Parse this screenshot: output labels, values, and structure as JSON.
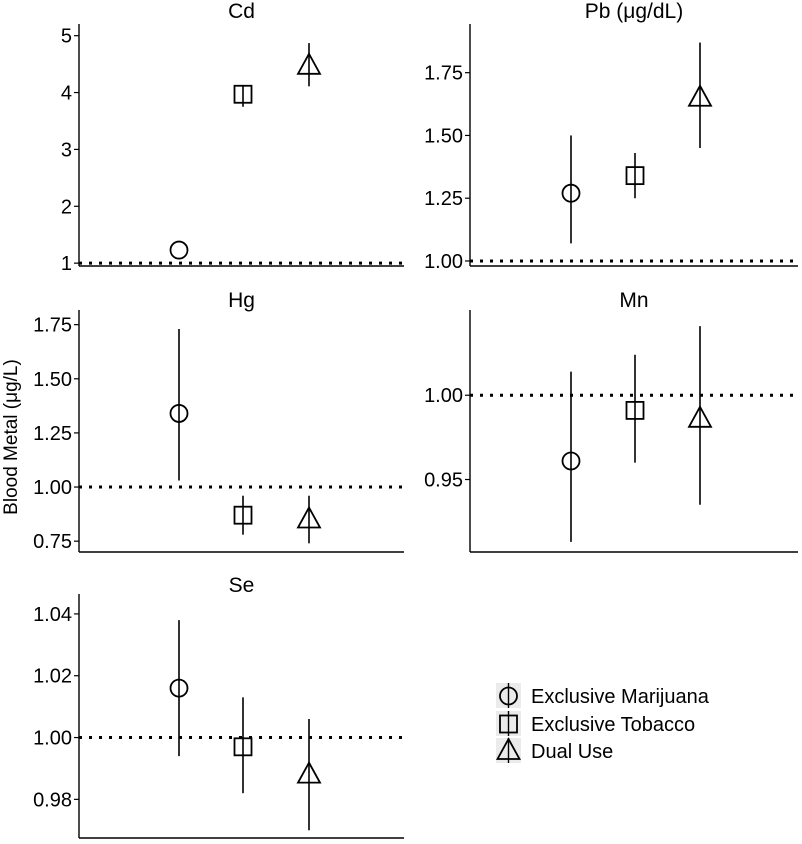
{
  "ylabel": "Blood Metal (μg/L)",
  "legend": {
    "placement": "bottom-right",
    "entries": [
      {
        "label": "Exclusive Marijuana",
        "marker": "circle"
      },
      {
        "label": "Exclusive Tobacco",
        "marker": "square"
      },
      {
        "label": "Dual Use",
        "marker": "triangle"
      }
    ]
  },
  "chart_data": [
    {
      "type": "scatter",
      "title": "Cd",
      "ylim": [
        0.95,
        5.1
      ],
      "yticks": [
        1,
        2,
        3,
        4,
        5
      ],
      "ytick_labels": [
        "1",
        "2",
        "3",
        "4",
        "5"
      ],
      "reference_line": 1,
      "series": [
        {
          "name": "Exclusive Marijuana",
          "marker": "circle",
          "value": 1.23,
          "lower": 1.23,
          "upper": 1.23
        },
        {
          "name": "Exclusive Tobacco",
          "marker": "square",
          "value": 3.97,
          "lower": 3.75,
          "upper": 4.12
        },
        {
          "name": "Dual Use",
          "marker": "triangle",
          "value": 4.47,
          "lower": 4.11,
          "upper": 4.87
        }
      ]
    },
    {
      "type": "scatter",
      "title": "Pb (μg/dL)",
      "ylim": [
        0.98,
        1.92
      ],
      "yticks": [
        1.0,
        1.25,
        1.5,
        1.75
      ],
      "ytick_labels": [
        "1.00",
        "1.25",
        "1.50",
        "1.75"
      ],
      "reference_line": 1,
      "series": [
        {
          "name": "Exclusive Marijuana",
          "marker": "circle",
          "value": 1.27,
          "lower": 1.07,
          "upper": 1.5
        },
        {
          "name": "Exclusive Tobacco",
          "marker": "square",
          "value": 1.34,
          "lower": 1.25,
          "upper": 1.43
        },
        {
          "name": "Dual Use",
          "marker": "triangle",
          "value": 1.65,
          "lower": 1.45,
          "upper": 1.87
        }
      ]
    },
    {
      "type": "scatter",
      "title": "Hg",
      "ylim": [
        0.7,
        1.79
      ],
      "yticks": [
        0.75,
        1.0,
        1.25,
        1.5,
        1.75
      ],
      "ytick_labels": [
        "0.75",
        "1.00",
        "1.25",
        "1.50",
        "1.75"
      ],
      "reference_line": 1,
      "series": [
        {
          "name": "Exclusive Marijuana",
          "marker": "circle",
          "value": 1.34,
          "lower": 1.03,
          "upper": 1.73
        },
        {
          "name": "Exclusive Tobacco",
          "marker": "square",
          "value": 0.87,
          "lower": 0.78,
          "upper": 0.96
        },
        {
          "name": "Dual Use",
          "marker": "triangle",
          "value": 0.85,
          "lower": 0.74,
          "upper": 0.96
        }
      ]
    },
    {
      "type": "scatter",
      "title": "Mn",
      "ylim": [
        0.907,
        1.047
      ],
      "yticks": [
        0.95,
        1.0
      ],
      "ytick_labels": [
        "0.95",
        "1.00"
      ],
      "reference_line": 1,
      "series": [
        {
          "name": "Exclusive Marijuana",
          "marker": "circle",
          "value": 0.961,
          "lower": 0.913,
          "upper": 1.014
        },
        {
          "name": "Exclusive Tobacco",
          "marker": "square",
          "value": 0.991,
          "lower": 0.96,
          "upper": 1.024
        },
        {
          "name": "Dual Use",
          "marker": "triangle",
          "value": 0.986,
          "lower": 0.935,
          "upper": 1.041
        }
      ]
    },
    {
      "type": "scatter",
      "title": "Se",
      "ylim": [
        0.9675,
        1.0445
      ],
      "yticks": [
        0.98,
        1.0,
        1.02,
        1.04
      ],
      "ytick_labels": [
        "0.98",
        "1.00",
        "1.02",
        "1.04"
      ],
      "reference_line": 1,
      "series": [
        {
          "name": "Exclusive Marijuana",
          "marker": "circle",
          "value": 1.016,
          "lower": 0.994,
          "upper": 1.038
        },
        {
          "name": "Exclusive Tobacco",
          "marker": "square",
          "value": 0.997,
          "lower": 0.982,
          "upper": 1.013
        },
        {
          "name": "Dual Use",
          "marker": "triangle",
          "value": 0.988,
          "lower": 0.97,
          "upper": 1.006
        }
      ]
    }
  ]
}
